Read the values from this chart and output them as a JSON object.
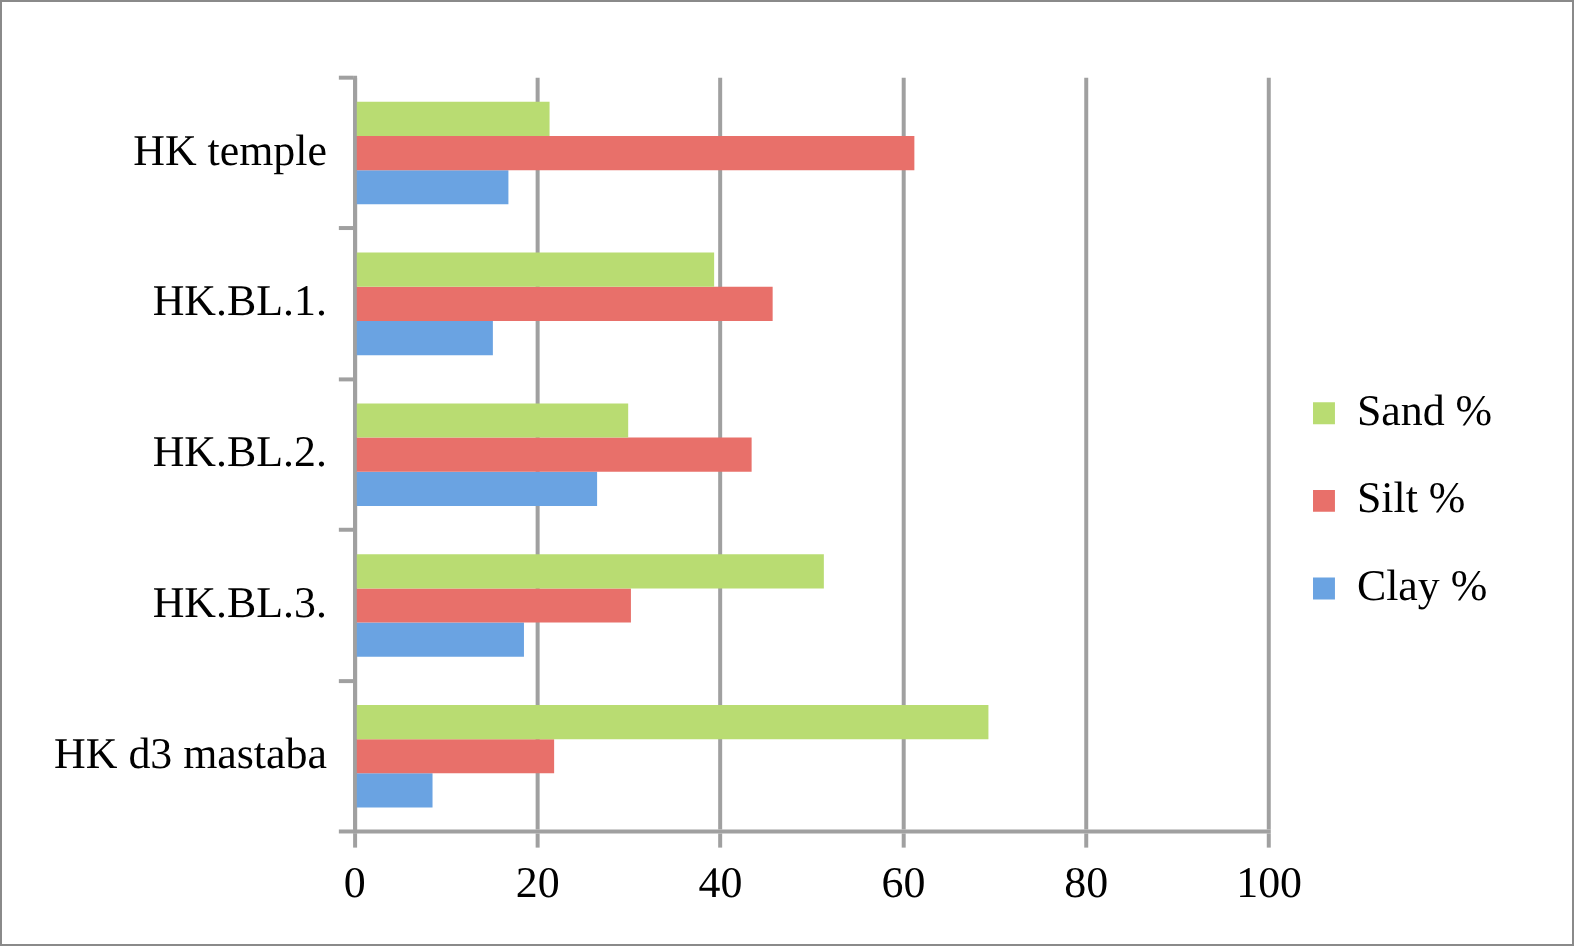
{
  "chart_data": {
    "type": "bar",
    "orientation": "horizontal",
    "categories": [
      "HK temple",
      "HK.BL.1.",
      "HK.BL.2.",
      "HK.BL.3.",
      "HK d3 mastaba"
    ],
    "series": [
      {
        "name": "Sand %",
        "color": "#b9dc72",
        "values": [
          21.3,
          39.3,
          29.9,
          51.3,
          69.3
        ]
      },
      {
        "name": "Silt %",
        "color": "#e8706a",
        "values": [
          61.2,
          45.7,
          43.4,
          30.2,
          21.8
        ]
      },
      {
        "name": "Clay %",
        "color": "#6aa3e2",
        "values": [
          16.8,
          15.1,
          26.5,
          18.5,
          8.5
        ]
      }
    ],
    "xlim": [
      0,
      100
    ],
    "xticks": [
      0,
      20,
      40,
      60,
      80,
      100
    ],
    "grid": "x",
    "legend": "right"
  }
}
